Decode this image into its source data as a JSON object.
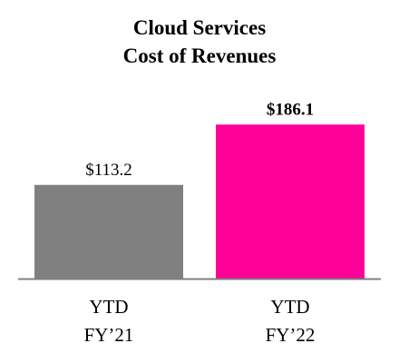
{
  "chart_data": {
    "type": "bar",
    "title_lines": [
      "Cloud Services",
      "Cost of Revenues"
    ],
    "categories": [
      {
        "line1": "YTD",
        "line2": "FY’21"
      },
      {
        "line1": "YTD",
        "line2": "FY’22"
      }
    ],
    "values": [
      113.2,
      186.1
    ],
    "value_labels": [
      "$113.2",
      "$186.1"
    ],
    "bar_colors": [
      "#808080",
      "#ff0099"
    ],
    "value_label_bold": [
      false,
      true
    ],
    "ylim": [
      0,
      220
    ],
    "axis_color": "#808080",
    "grid": false,
    "legend": "none"
  }
}
